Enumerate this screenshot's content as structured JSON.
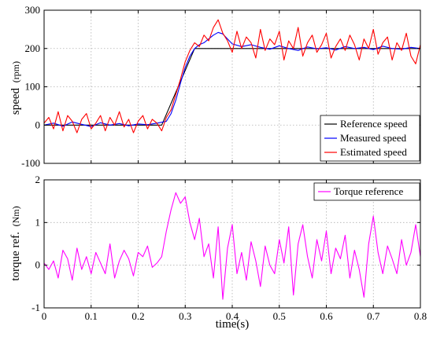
{
  "chart_data": [
    {
      "type": "line",
      "ylabel": "speed",
      "ylabel_unit": "(rpm)",
      "xlim": [
        0,
        0.8
      ],
      "ylim": [
        -100,
        300
      ],
      "yticks": [
        -100,
        0,
        100,
        200,
        300
      ],
      "grid": true,
      "legend_position": "bottom-right",
      "series": [
        {
          "name": "Reference speed",
          "color": "#000000",
          "x": [
            0,
            0.25,
            0.32,
            0.8
          ],
          "y": [
            0,
            0,
            200,
            200
          ]
        },
        {
          "name": "Measured speed",
          "color": "#0000ff",
          "x": [
            0,
            0.02,
            0.04,
            0.06,
            0.08,
            0.1,
            0.12,
            0.14,
            0.16,
            0.18,
            0.2,
            0.22,
            0.24,
            0.26,
            0.27,
            0.28,
            0.29,
            0.3,
            0.31,
            0.32,
            0.33,
            0.34,
            0.35,
            0.36,
            0.37,
            0.38,
            0.39,
            0.4,
            0.42,
            0.44,
            0.46,
            0.48,
            0.5,
            0.52,
            0.54,
            0.56,
            0.58,
            0.6,
            0.62,
            0.64,
            0.66,
            0.68,
            0.7,
            0.72,
            0.74,
            0.76,
            0.78,
            0.8
          ],
          "y": [
            0,
            5,
            -3,
            8,
            2,
            -4,
            6,
            0,
            4,
            -2,
            3,
            1,
            5,
            10,
            30,
            65,
            110,
            150,
            180,
            200,
            210,
            215,
            225,
            235,
            242,
            238,
            225,
            212,
            205,
            210,
            203,
            198,
            207,
            200,
            195,
            204,
            199,
            202,
            196,
            205,
            200,
            203,
            197,
            206,
            200,
            198,
            203,
            200
          ]
        },
        {
          "name": "Estimated speed",
          "color": "#ff0000",
          "x": [
            0,
            0.01,
            0.02,
            0.03,
            0.04,
            0.05,
            0.06,
            0.07,
            0.08,
            0.09,
            0.1,
            0.11,
            0.12,
            0.13,
            0.14,
            0.15,
            0.16,
            0.17,
            0.18,
            0.19,
            0.2,
            0.21,
            0.22,
            0.23,
            0.24,
            0.25,
            0.26,
            0.27,
            0.28,
            0.29,
            0.3,
            0.31,
            0.32,
            0.33,
            0.34,
            0.35,
            0.36,
            0.37,
            0.38,
            0.39,
            0.4,
            0.41,
            0.42,
            0.43,
            0.44,
            0.45,
            0.46,
            0.47,
            0.48,
            0.49,
            0.5,
            0.51,
            0.52,
            0.53,
            0.54,
            0.55,
            0.56,
            0.57,
            0.58,
            0.59,
            0.6,
            0.61,
            0.62,
            0.63,
            0.64,
            0.65,
            0.66,
            0.67,
            0.68,
            0.69,
            0.7,
            0.71,
            0.72,
            0.73,
            0.74,
            0.75,
            0.76,
            0.77,
            0.78,
            0.79,
            0.8
          ],
          "y": [
            5,
            20,
            -10,
            35,
            -15,
            25,
            10,
            -20,
            15,
            30,
            -10,
            5,
            25,
            -15,
            20,
            0,
            35,
            -5,
            15,
            -20,
            10,
            25,
            -10,
            15,
            5,
            -15,
            20,
            40,
            80,
            120,
            165,
            195,
            215,
            205,
            235,
            220,
            255,
            275,
            240,
            220,
            190,
            245,
            200,
            230,
            215,
            175,
            250,
            195,
            225,
            210,
            245,
            170,
            220,
            200,
            255,
            180,
            215,
            235,
            190,
            210,
            240,
            175,
            205,
            225,
            195,
            235,
            210,
            170,
            225,
            200,
            250,
            185,
            215,
            230,
            170,
            215,
            195,
            240,
            180,
            160,
            210
          ]
        }
      ]
    },
    {
      "type": "line",
      "xlabel": "time(s)",
      "ylabel": "torque ref.",
      "ylabel_unit": "(Nm)",
      "xlim": [
        0,
        0.8
      ],
      "ylim": [
        -1,
        2
      ],
      "yticks": [
        -1,
        0,
        1,
        2
      ],
      "xticks": [
        0,
        0.1,
        0.2,
        0.3,
        0.4,
        0.5,
        0.6,
        0.7,
        0.8
      ],
      "grid": true,
      "legend_position": "top-right",
      "series": [
        {
          "name": "Torque reference",
          "color": "#ff00ff",
          "x": [
            0,
            0.01,
            0.02,
            0.03,
            0.04,
            0.05,
            0.06,
            0.07,
            0.08,
            0.09,
            0.1,
            0.11,
            0.12,
            0.13,
            0.14,
            0.15,
            0.16,
            0.17,
            0.18,
            0.19,
            0.2,
            0.21,
            0.22,
            0.23,
            0.24,
            0.25,
            0.26,
            0.27,
            0.28,
            0.29,
            0.3,
            0.31,
            0.32,
            0.33,
            0.34,
            0.35,
            0.36,
            0.37,
            0.38,
            0.39,
            0.4,
            0.41,
            0.42,
            0.43,
            0.44,
            0.45,
            0.46,
            0.47,
            0.48,
            0.49,
            0.5,
            0.51,
            0.52,
            0.53,
            0.54,
            0.55,
            0.56,
            0.57,
            0.58,
            0.59,
            0.6,
            0.61,
            0.62,
            0.63,
            0.64,
            0.65,
            0.66,
            0.67,
            0.68,
            0.69,
            0.7,
            0.71,
            0.72,
            0.73,
            0.74,
            0.75,
            0.76,
            0.77,
            0.78,
            0.79,
            0.8
          ],
          "y": [
            0.05,
            -0.1,
            0.1,
            -0.3,
            0.35,
            0.15,
            -0.35,
            0.4,
            -0.1,
            0.2,
            -0.2,
            0.3,
            0.05,
            -0.2,
            0.5,
            -0.3,
            0.1,
            0.35,
            0.15,
            -0.25,
            0.3,
            0.2,
            0.45,
            -0.05,
            0.05,
            0.2,
            0.8,
            1.3,
            1.7,
            1.45,
            1.6,
            1.0,
            0.6,
            1.1,
            0.2,
            0.5,
            -0.3,
            0.9,
            -0.8,
            0.4,
            0.95,
            -0.2,
            0.3,
            -0.35,
            0.55,
            0.1,
            -0.5,
            0.45,
            0.0,
            -0.2,
            0.6,
            0.05,
            0.9,
            -0.7,
            0.5,
            0.95,
            0.2,
            -0.3,
            0.6,
            0.1,
            0.8,
            -0.2,
            0.4,
            0.15,
            0.7,
            -0.3,
            0.35,
            -0.1,
            -0.75,
            0.5,
            1.15,
            0.3,
            -0.2,
            0.45,
            0.15,
            -0.2,
            0.6,
            0.0,
            0.3,
            0.95,
            0.2
          ]
        }
      ]
    }
  ]
}
